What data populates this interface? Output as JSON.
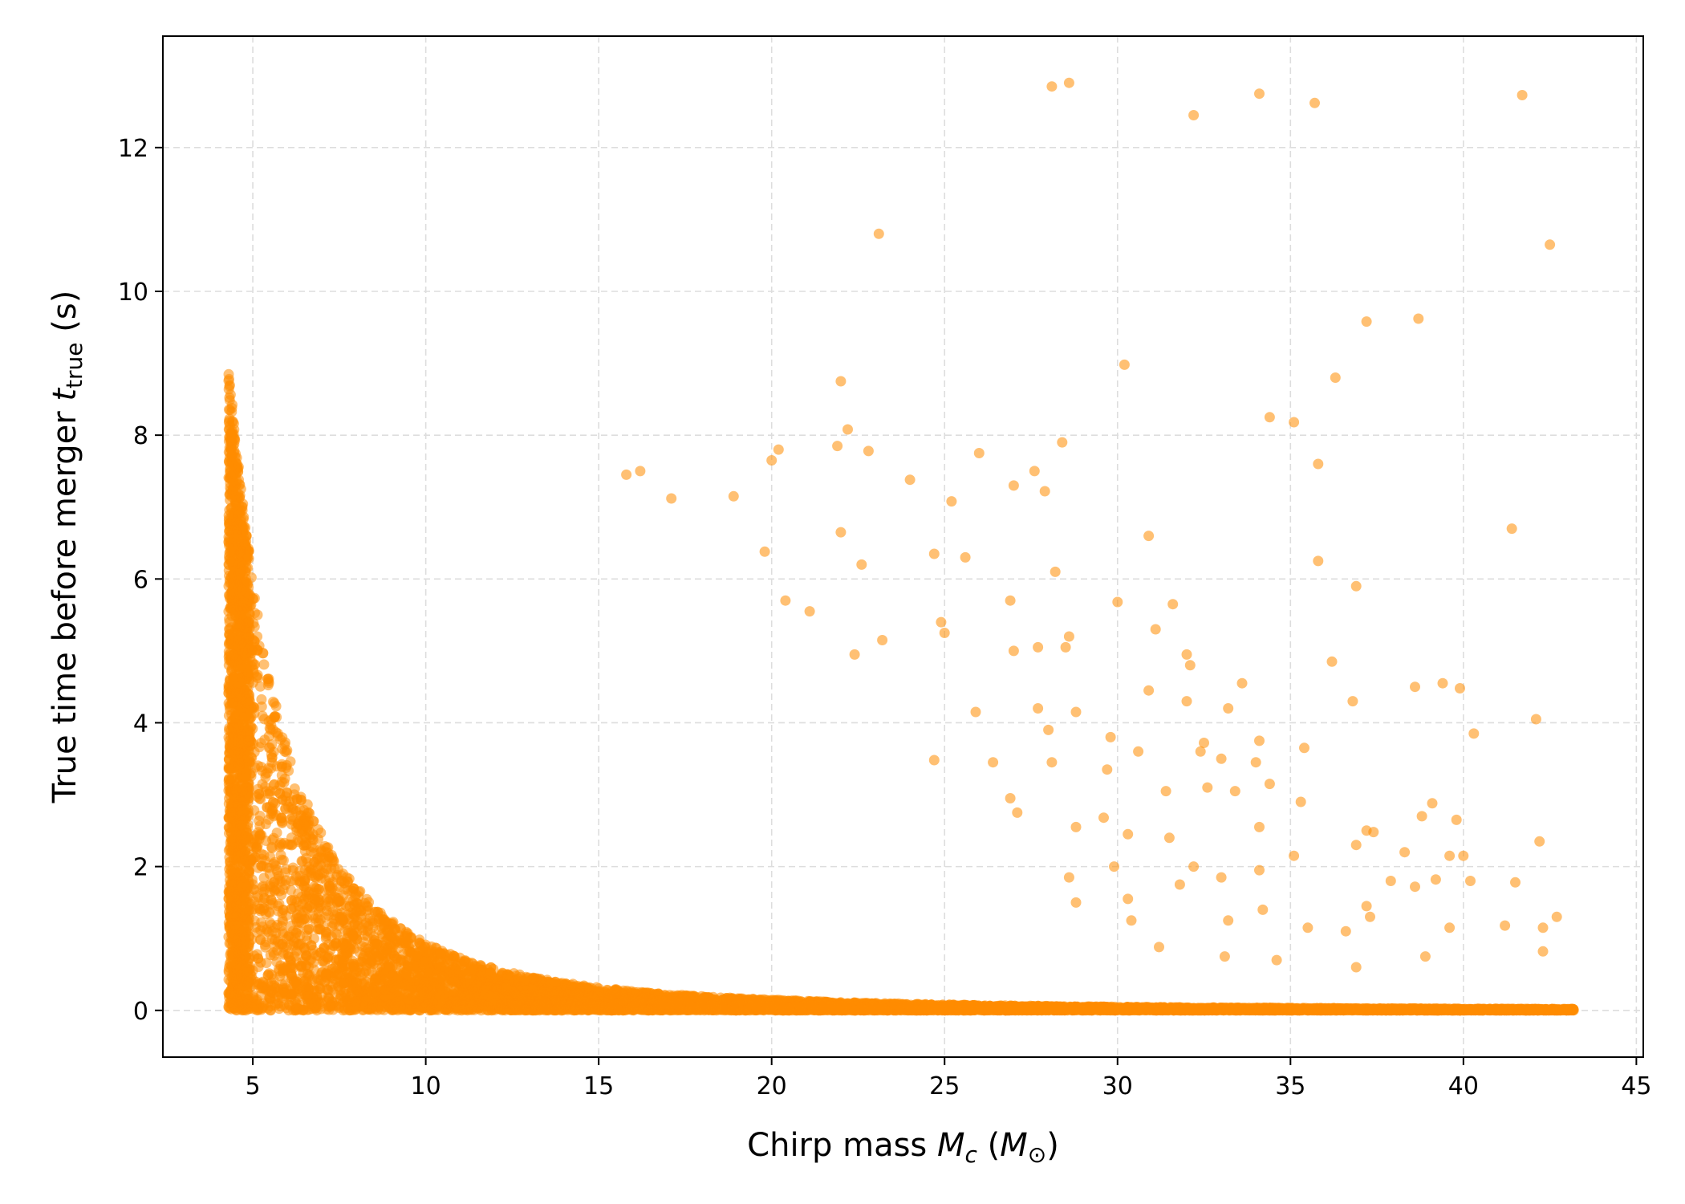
{
  "chart_data": {
    "type": "scatter",
    "xlabel": "Chirp mass",
    "xlabel_symbol": "M",
    "xlabel_subscript": "c",
    "xlabel_unit_symbol": "M",
    "xlabel_unit_subscript": "⊙",
    "ylabel": "True time before merger",
    "ylabel_symbol": "t",
    "ylabel_subscript": "true",
    "ylabel_unit": "(s)",
    "xlim": [
      2.4,
      45.2
    ],
    "ylim": [
      -0.65,
      13.55
    ],
    "xticks": [
      5,
      10,
      15,
      20,
      25,
      30,
      35,
      40,
      45
    ],
    "yticks": [
      0,
      2,
      4,
      6,
      8,
      10,
      12
    ],
    "grid": true,
    "legend": "none",
    "colors": {
      "points": "#ff8c00",
      "grid": "#dddddd",
      "axis": "#000000"
    },
    "point_opacity": 0.55,
    "dense_region": {
      "description": "dense cloud of points bounded above by the curve t = 9.0 * (4.3 / Mc)^2.67, Mc from 4.3 to 43.2",
      "x_range": [
        4.3,
        43.2
      ],
      "y_floor": 0
    },
    "sparse_points": [
      [
        28.1,
        12.85
      ],
      [
        28.6,
        12.9
      ],
      [
        32.2,
        12.45
      ],
      [
        34.1,
        12.75
      ],
      [
        35.7,
        12.62
      ],
      [
        41.7,
        12.73
      ],
      [
        23.1,
        10.8
      ],
      [
        42.5,
        10.65
      ],
      [
        37.2,
        9.58
      ],
      [
        38.7,
        9.62
      ],
      [
        30.2,
        8.98
      ],
      [
        36.3,
        8.8
      ],
      [
        22.0,
        8.75
      ],
      [
        34.4,
        8.25
      ],
      [
        35.1,
        8.18
      ],
      [
        22.2,
        8.08
      ],
      [
        28.4,
        7.9
      ],
      [
        21.9,
        7.85
      ],
      [
        20.2,
        7.8
      ],
      [
        22.8,
        7.78
      ],
      [
        26.0,
        7.75
      ],
      [
        20.0,
        7.65
      ],
      [
        35.8,
        7.6
      ],
      [
        27.6,
        7.5
      ],
      [
        16.2,
        7.5
      ],
      [
        15.8,
        7.45
      ],
      [
        24.0,
        7.38
      ],
      [
        27.0,
        7.3
      ],
      [
        27.9,
        7.22
      ],
      [
        18.9,
        7.15
      ],
      [
        25.2,
        7.08
      ],
      [
        17.1,
        7.12
      ],
      [
        41.4,
        6.7
      ],
      [
        22.0,
        6.65
      ],
      [
        30.9,
        6.6
      ],
      [
        19.8,
        6.38
      ],
      [
        24.7,
        6.35
      ],
      [
        25.6,
        6.3
      ],
      [
        35.8,
        6.25
      ],
      [
        28.2,
        6.1
      ],
      [
        22.6,
        6.2
      ],
      [
        26.9,
        5.7
      ],
      [
        30.0,
        5.68
      ],
      [
        31.6,
        5.65
      ],
      [
        36.9,
        5.9
      ],
      [
        20.4,
        5.7
      ],
      [
        21.1,
        5.55
      ],
      [
        31.1,
        5.3
      ],
      [
        28.6,
        5.2
      ],
      [
        28.5,
        5.05
      ],
      [
        27.7,
        5.05
      ],
      [
        27.0,
        5.0
      ],
      [
        32.0,
        4.95
      ],
      [
        36.2,
        4.85
      ],
      [
        32.1,
        4.8
      ],
      [
        22.4,
        4.95
      ],
      [
        23.2,
        5.15
      ],
      [
        24.9,
        5.4
      ],
      [
        25.0,
        5.25
      ],
      [
        30.9,
        4.45
      ],
      [
        33.6,
        4.55
      ],
      [
        38.6,
        4.5
      ],
      [
        39.4,
        4.55
      ],
      [
        39.9,
        4.48
      ],
      [
        42.1,
        4.05
      ],
      [
        32.0,
        4.3
      ],
      [
        25.9,
        4.15
      ],
      [
        27.7,
        4.2
      ],
      [
        28.8,
        4.15
      ],
      [
        33.2,
        4.2
      ],
      [
        28.0,
        3.9
      ],
      [
        34.1,
        3.75
      ],
      [
        32.5,
        3.72
      ],
      [
        30.6,
        3.6
      ],
      [
        35.4,
        3.65
      ],
      [
        32.4,
        3.6
      ],
      [
        36.8,
        4.3
      ],
      [
        40.3,
        3.85
      ],
      [
        29.8,
        3.8
      ],
      [
        29.7,
        3.35
      ],
      [
        24.7,
        3.48
      ],
      [
        26.4,
        3.45
      ],
      [
        28.1,
        3.45
      ],
      [
        33.0,
        3.5
      ],
      [
        34.0,
        3.45
      ],
      [
        31.4,
        3.05
      ],
      [
        32.6,
        3.1
      ],
      [
        33.4,
        3.05
      ],
      [
        34.4,
        3.15
      ],
      [
        35.3,
        2.9
      ],
      [
        26.9,
        2.95
      ],
      [
        27.1,
        2.75
      ],
      [
        28.8,
        2.55
      ],
      [
        29.6,
        2.68
      ],
      [
        30.3,
        2.45
      ],
      [
        31.5,
        2.4
      ],
      [
        34.1,
        2.55
      ],
      [
        37.2,
        2.5
      ],
      [
        37.4,
        2.48
      ],
      [
        38.8,
        2.7
      ],
      [
        39.1,
        2.88
      ],
      [
        39.8,
        2.65
      ],
      [
        36.9,
        2.3
      ],
      [
        38.3,
        2.2
      ],
      [
        39.6,
        2.15
      ],
      [
        40.0,
        2.15
      ],
      [
        42.2,
        2.35
      ],
      [
        35.1,
        2.15
      ],
      [
        32.2,
        2.0
      ],
      [
        29.9,
        2.0
      ],
      [
        28.6,
        1.85
      ],
      [
        31.8,
        1.75
      ],
      [
        34.1,
        1.95
      ],
      [
        37.9,
        1.8
      ],
      [
        38.6,
        1.72
      ],
      [
        39.2,
        1.82
      ],
      [
        40.2,
        1.8
      ],
      [
        41.5,
        1.78
      ],
      [
        33.0,
        1.85
      ],
      [
        30.3,
        1.55
      ],
      [
        28.8,
        1.5
      ],
      [
        34.2,
        1.4
      ],
      [
        37.2,
        1.45
      ],
      [
        30.4,
        1.25
      ],
      [
        33.2,
        1.25
      ],
      [
        35.5,
        1.15
      ],
      [
        39.6,
        1.15
      ],
      [
        41.2,
        1.18
      ],
      [
        42.3,
        1.15
      ],
      [
        42.7,
        1.3
      ],
      [
        36.6,
        1.1
      ],
      [
        37.3,
        1.3
      ],
      [
        42.3,
        0.82
      ],
      [
        34.6,
        0.7
      ],
      [
        36.9,
        0.6
      ],
      [
        38.9,
        0.75
      ],
      [
        33.1,
        0.75
      ],
      [
        31.2,
        0.88
      ]
    ]
  }
}
